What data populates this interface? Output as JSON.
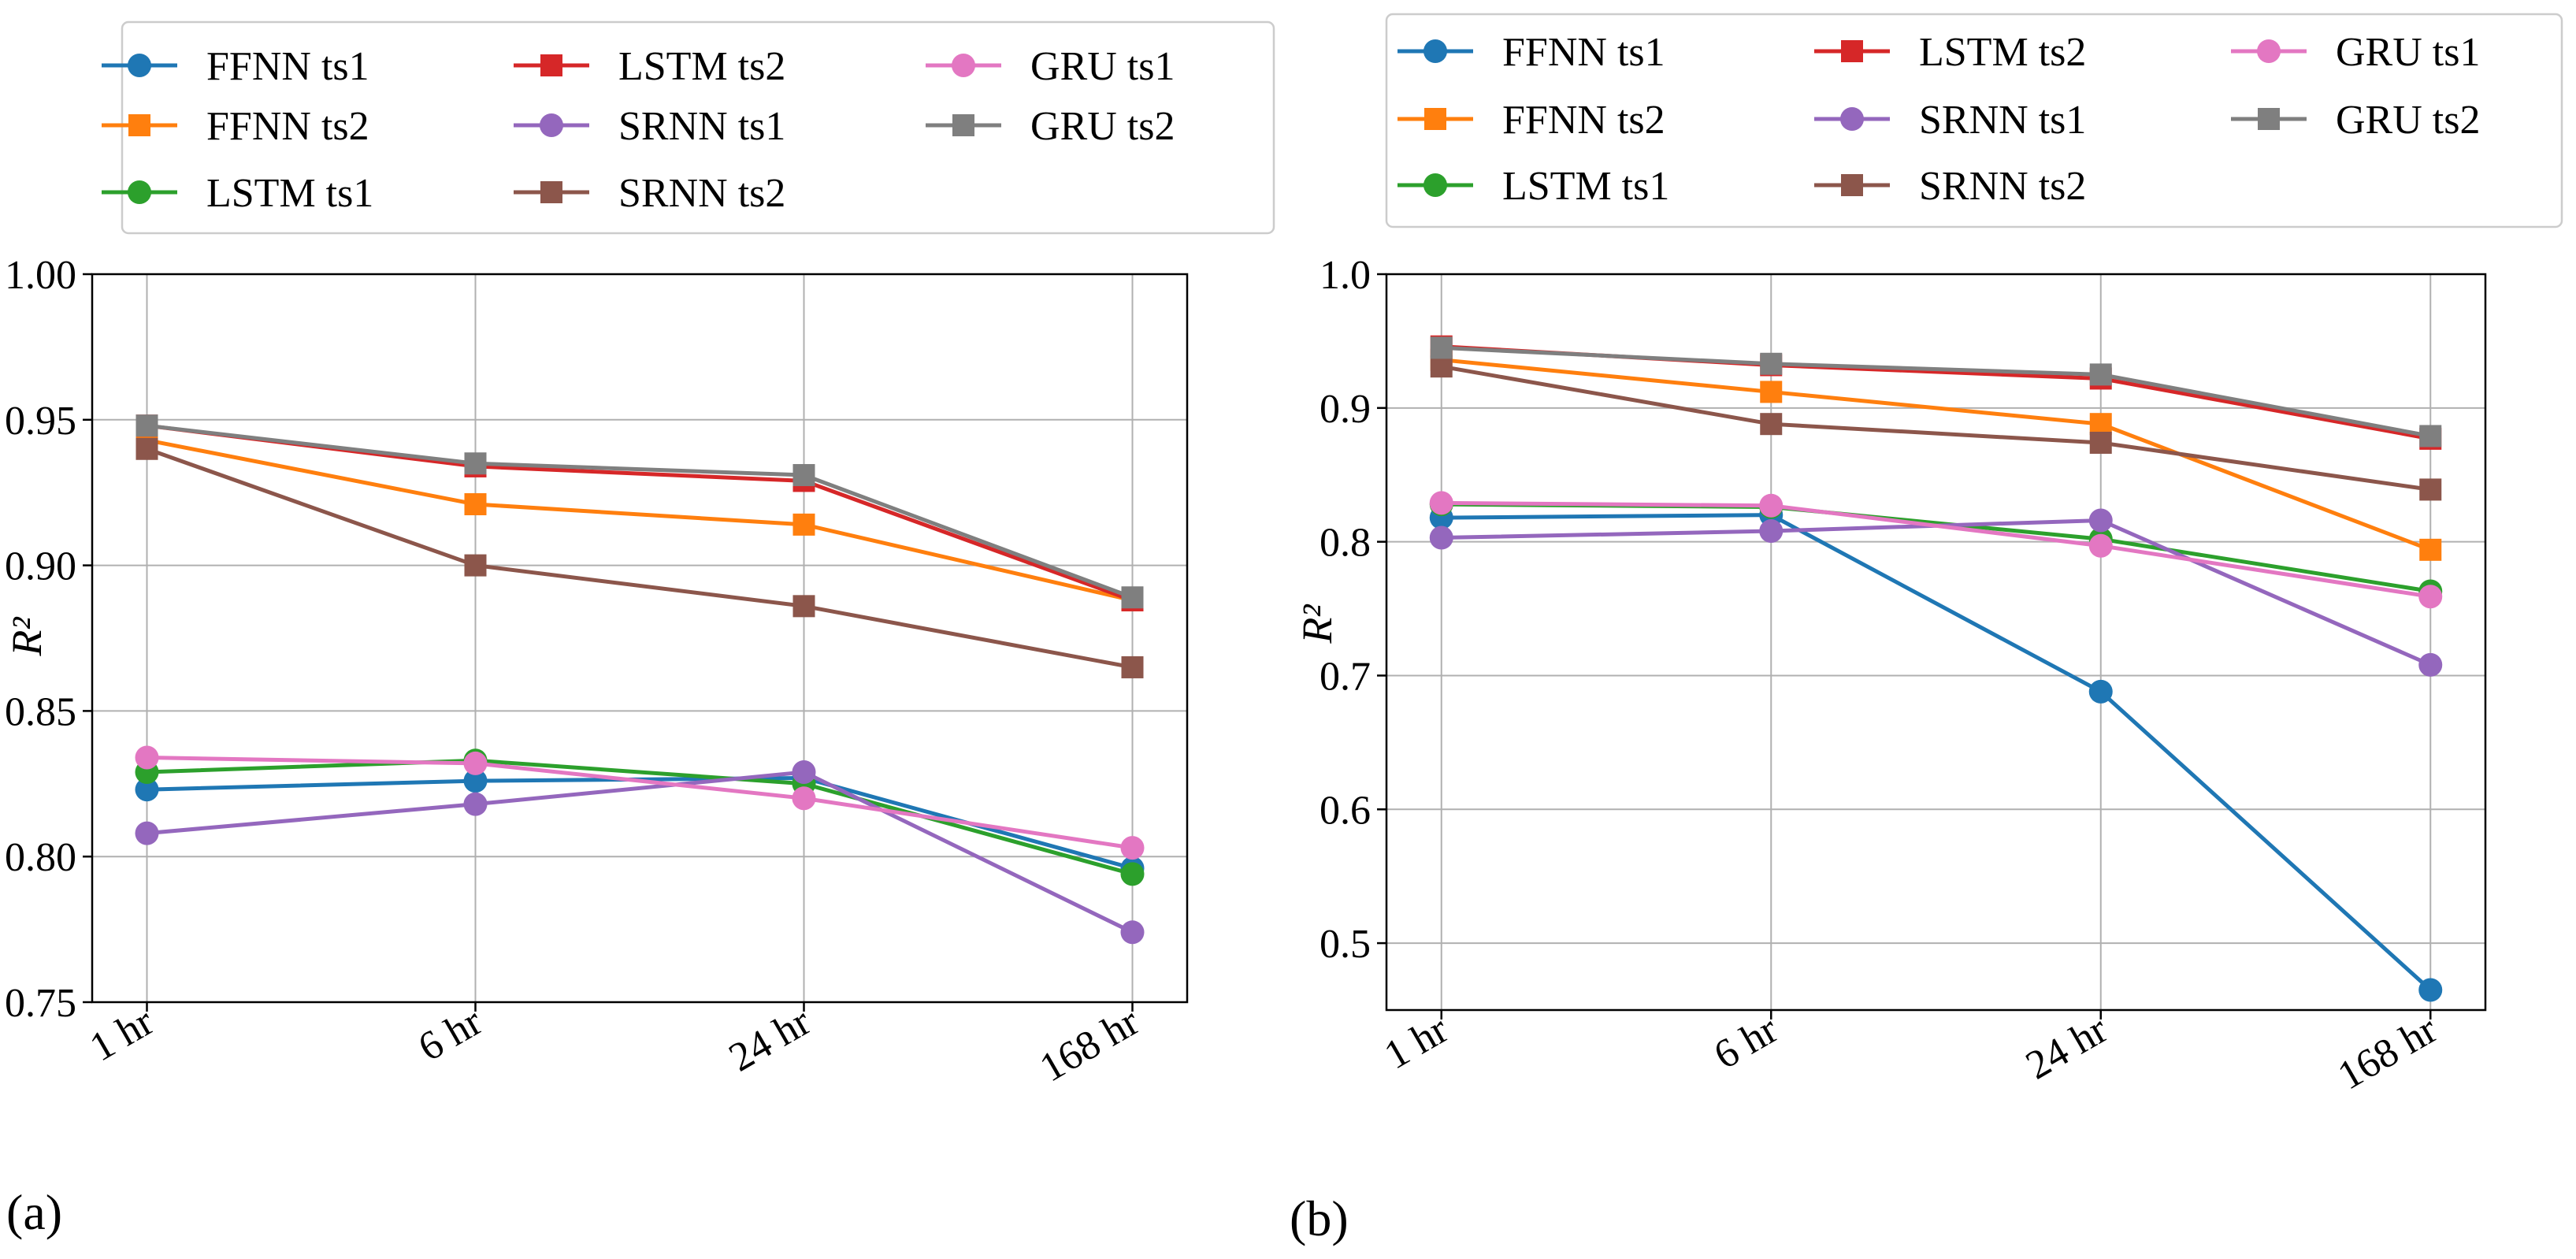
{
  "colors": {
    "FFNN ts1": "#1f77b4",
    "FFNN ts2": "#ff7f0e",
    "LSTM ts1": "#2ca02c",
    "LSTM ts2": "#d62728",
    "SRNN ts1": "#9467bd",
    "SRNN ts2": "#8c564b",
    "GRU ts1": "#e377c2",
    "GRU ts2": "#7f7f7f"
  },
  "chart_data": [
    {
      "type": "line",
      "panel_label": "(a)",
      "ylabel": "R²",
      "xlabel": "",
      "categories": [
        "1 hr",
        "6 hr",
        "24 hr",
        "168 hr"
      ],
      "ylim": [
        0.75,
        1.0
      ],
      "yticks": [
        0.75,
        0.8,
        0.85,
        0.9,
        0.95,
        1.0
      ],
      "ytick_labels": [
        "0.75",
        "0.80",
        "0.85",
        "0.90",
        "0.95",
        "1.00"
      ],
      "grid": true,
      "legend": "top, 3 columns",
      "series": [
        {
          "name": "FFNN ts1",
          "marker": "circle",
          "values": [
            0.823,
            0.826,
            0.827,
            0.796
          ]
        },
        {
          "name": "FFNN ts2",
          "marker": "square",
          "values": [
            0.943,
            0.921,
            0.914,
            0.888
          ]
        },
        {
          "name": "LSTM ts1",
          "marker": "circle",
          "values": [
            0.829,
            0.833,
            0.825,
            0.794
          ]
        },
        {
          "name": "LSTM ts2",
          "marker": "square",
          "values": [
            0.948,
            0.934,
            0.929,
            0.888
          ]
        },
        {
          "name": "SRNN ts1",
          "marker": "circle",
          "values": [
            0.808,
            0.818,
            0.829,
            0.774
          ]
        },
        {
          "name": "SRNN ts2",
          "marker": "square",
          "values": [
            0.94,
            0.9,
            0.886,
            0.865
          ]
        },
        {
          "name": "GRU ts1",
          "marker": "circle",
          "values": [
            0.834,
            0.832,
            0.82,
            0.803
          ]
        },
        {
          "name": "GRU ts2",
          "marker": "square",
          "values": [
            0.948,
            0.935,
            0.931,
            0.889
          ]
        }
      ]
    },
    {
      "type": "line",
      "panel_label": "(b)",
      "ylabel": "R²",
      "xlabel": "",
      "categories": [
        "1 hr",
        "6 hr",
        "24 hr",
        "168 hr"
      ],
      "ylim": [
        0.45,
        1.0
      ],
      "yticks": [
        0.5,
        0.6,
        0.7,
        0.8,
        0.9,
        1.0
      ],
      "ytick_labels": [
        "0.5",
        "0.6",
        "0.7",
        "0.8",
        "0.9",
        "1.0"
      ],
      "grid": true,
      "legend": "top, 3 columns",
      "series": [
        {
          "name": "FFNN ts1",
          "marker": "circle",
          "values": [
            0.818,
            0.82,
            0.688,
            0.465
          ]
        },
        {
          "name": "FFNN ts2",
          "marker": "square",
          "values": [
            0.936,
            0.912,
            0.888,
            0.794
          ]
        },
        {
          "name": "LSTM ts1",
          "marker": "circle",
          "values": [
            0.828,
            0.826,
            0.802,
            0.763
          ]
        },
        {
          "name": "LSTM ts2",
          "marker": "square",
          "values": [
            0.946,
            0.932,
            0.922,
            0.877
          ]
        },
        {
          "name": "SRNN ts1",
          "marker": "circle",
          "values": [
            0.803,
            0.808,
            0.816,
            0.708
          ]
        },
        {
          "name": "SRNN ts2",
          "marker": "square",
          "values": [
            0.931,
            0.888,
            0.874,
            0.839
          ]
        },
        {
          "name": "GRU ts1",
          "marker": "circle",
          "values": [
            0.829,
            0.827,
            0.797,
            0.759
          ]
        },
        {
          "name": "GRU ts2",
          "marker": "square",
          "values": [
            0.945,
            0.933,
            0.925,
            0.879
          ]
        }
      ]
    }
  ]
}
